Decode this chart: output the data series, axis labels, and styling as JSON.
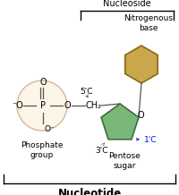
{
  "bg_color": "#ffffff",
  "phosphate_circle_color": "#fdf5e8",
  "phosphate_circle_edge": "#d4b896",
  "pentagon_fill": "#7ab87a",
  "pentagon_edge": "#3a6e3a",
  "hexagon_fill": "#c9a84c",
  "hexagon_edge": "#8b6914",
  "bond_color": "#555555",
  "title": "Nucleotide",
  "nucleoside_label": "Nucleoside",
  "nitro_label": "Nitrogenous\nbase",
  "phosphate_label": "Phosphate\ngroup",
  "pentose_label": "Pentose\nsugar",
  "label_5c": "5'C",
  "label_3c": "3'C",
  "label_1c": "1'C",
  "label_ch2": "CH₂",
  "label_o_top": "O",
  "label_o_bot": "O⁻",
  "label_o_left": "⁻O",
  "label_o_right": "O",
  "label_p": "P",
  "figsize": [
    2.0,
    2.18
  ],
  "dpi": 100
}
